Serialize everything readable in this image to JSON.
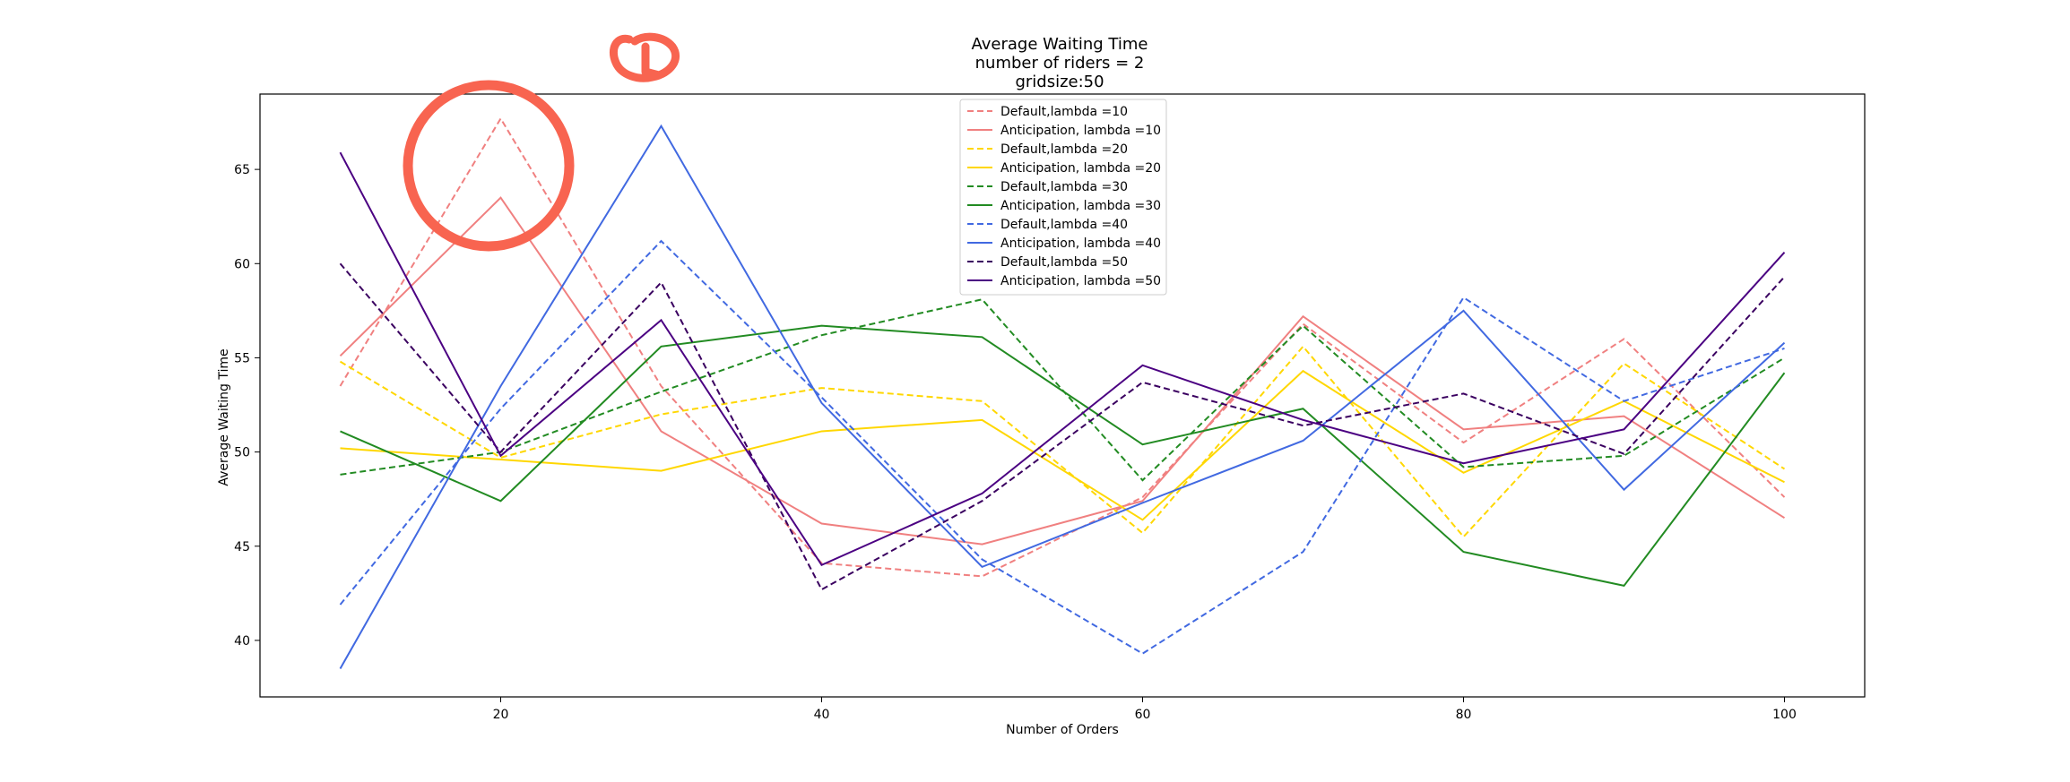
{
  "chart_data": {
    "type": "line",
    "title_lines": [
      "Average Waiting Time",
      "number of riders = 2",
      "gridsize:50"
    ],
    "xlabel": "Number of Orders",
    "ylabel": "Average Waiting Time",
    "x": [
      10,
      20,
      30,
      40,
      50,
      60,
      70,
      80,
      90,
      100
    ],
    "xlim": [
      5,
      105
    ],
    "ylim": [
      37,
      69
    ],
    "xticks": [
      20,
      40,
      60,
      80,
      100
    ],
    "yticks": [
      40,
      45,
      50,
      55,
      60,
      65
    ],
    "grid": false,
    "legend_position": "top-center",
    "series": [
      {
        "name": "Default,lambda =10",
        "color": "#f08080",
        "dashed": true,
        "values": [
          53.5,
          67.7,
          53.5,
          44.1,
          43.4,
          47.6,
          56.8,
          50.5,
          56.0,
          47.6
        ]
      },
      {
        "name": "Anticipation, lambda =10",
        "color": "#f08080",
        "dashed": false,
        "values": [
          55.1,
          63.5,
          51.1,
          46.2,
          45.1,
          47.4,
          57.2,
          51.2,
          51.9,
          46.5
        ]
      },
      {
        "name": "Default,lambda =20",
        "color": "#ffd700",
        "dashed": true,
        "values": [
          54.8,
          49.7,
          52.0,
          53.4,
          52.7,
          45.7,
          55.6,
          45.5,
          54.7,
          49.1
        ]
      },
      {
        "name": "Anticipation, lambda =20",
        "color": "#ffd700",
        "dashed": false,
        "values": [
          50.2,
          49.6,
          49.0,
          51.1,
          51.7,
          46.4,
          54.3,
          48.9,
          52.7,
          48.4
        ]
      },
      {
        "name": "Default,lambda =30",
        "color": "#228b22",
        "dashed": true,
        "values": [
          48.8,
          50.0,
          53.2,
          56.2,
          58.1,
          48.5,
          56.7,
          49.2,
          49.8,
          55.0
        ]
      },
      {
        "name": "Anticipation, lambda =30",
        "color": "#228b22",
        "dashed": false,
        "values": [
          51.1,
          47.4,
          55.6,
          56.7,
          56.1,
          50.4,
          52.3,
          44.7,
          42.9,
          54.2
        ]
      },
      {
        "name": "Default,lambda =40",
        "color": "#4169e1",
        "dashed": true,
        "values": [
          41.9,
          52.3,
          61.2,
          52.9,
          44.3,
          39.3,
          44.7,
          58.2,
          52.7,
          55.5
        ]
      },
      {
        "name": "Anticipation, lambda =40",
        "color": "#4169e1",
        "dashed": false,
        "values": [
          38.5,
          53.5,
          67.3,
          52.6,
          43.9,
          47.3,
          50.6,
          57.5,
          48.0,
          55.8
        ]
      },
      {
        "name": "Default,lambda =50",
        "color": "#3a0060",
        "dashed": true,
        "values": [
          60.0,
          50.0,
          59.0,
          42.7,
          47.4,
          53.7,
          51.4,
          53.1,
          49.9,
          59.3
        ]
      },
      {
        "name": "Anticipation, lambda =50",
        "color": "#4b0082",
        "dashed": false,
        "values": [
          65.9,
          49.8,
          57.0,
          44.0,
          47.8,
          54.6,
          51.7,
          49.4,
          51.2,
          60.6
        ]
      }
    ]
  },
  "annotations": {
    "circle_color": "#f86450",
    "mark_color": "#f86450"
  }
}
